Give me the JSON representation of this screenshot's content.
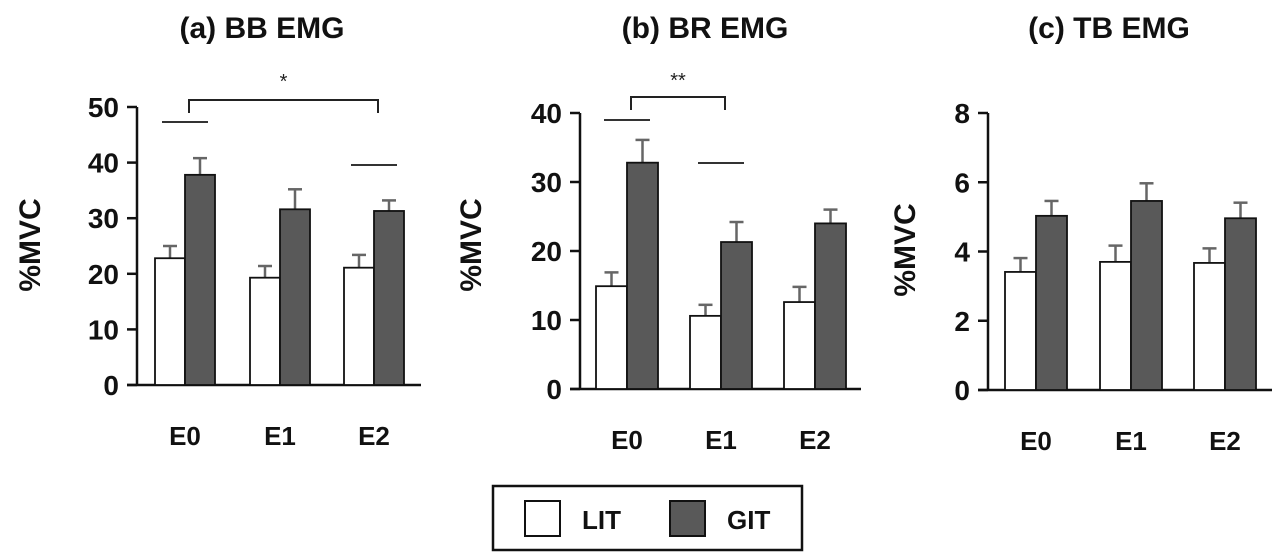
{
  "chart_data": [
    {
      "type": "bar",
      "title": "(a) BB EMG",
      "ylabel": "%MVC",
      "xlabel": "",
      "ylim": [
        0,
        50
      ],
      "yticks": [
        0,
        10,
        20,
        30,
        40,
        50
      ],
      "categories": [
        "E0",
        "E1",
        "E2"
      ],
      "series": [
        {
          "name": "LIT",
          "values": [
            22.8,
            19.3,
            21.1
          ],
          "error": [
            2.2,
            2.1,
            2.3
          ]
        },
        {
          "name": "GIT",
          "values": [
            37.8,
            31.6,
            31.3
          ],
          "error": [
            3.0,
            3.6,
            1.9
          ]
        }
      ],
      "annotations": [
        {
          "type": "bracket",
          "from": "E0",
          "to": "E2",
          "label": "*"
        },
        {
          "type": "line",
          "category": "E0"
        },
        {
          "type": "line",
          "category": "E2"
        }
      ],
      "grid": false
    },
    {
      "type": "bar",
      "title": "(b) BR EMG",
      "ylabel": "%MVC",
      "xlabel": "",
      "ylim": [
        0,
        40
      ],
      "yticks": [
        0,
        10,
        20,
        30,
        40
      ],
      "categories": [
        "E0",
        "E1",
        "E2"
      ],
      "series": [
        {
          "name": "LIT",
          "values": [
            14.9,
            10.6,
            12.6
          ],
          "error": [
            2.0,
            1.6,
            2.2
          ]
        },
        {
          "name": "GIT",
          "values": [
            32.8,
            21.3,
            24.0
          ],
          "error": [
            3.3,
            2.9,
            2.0
          ]
        }
      ],
      "annotations": [
        {
          "type": "bracket",
          "from": "E0",
          "to": "E1",
          "label": "**"
        },
        {
          "type": "line",
          "category": "E0"
        },
        {
          "type": "line",
          "category": "E1"
        }
      ],
      "grid": false
    },
    {
      "type": "bar",
      "title": "(c) TB EMG",
      "ylabel": "%MVC",
      "xlabel": "",
      "ylim": [
        0,
        8
      ],
      "yticks": [
        0,
        2,
        4,
        6,
        8
      ],
      "categories": [
        "E0",
        "E1",
        "E2"
      ],
      "series": [
        {
          "name": "LIT",
          "values": [
            3.41,
            3.7,
            3.67
          ],
          "error": [
            0.4,
            0.47,
            0.42
          ]
        },
        {
          "name": "GIT",
          "values": [
            5.03,
            5.46,
            4.96
          ],
          "error": [
            0.43,
            0.51,
            0.45
          ]
        }
      ],
      "annotations": [],
      "grid": false
    }
  ],
  "legend": {
    "position": "bottom-center",
    "items": [
      {
        "label": "LIT",
        "color": "#ffffff"
      },
      {
        "label": "GIT",
        "color": "#595959"
      }
    ]
  },
  "colors": {
    "LIT": "#ffffff",
    "GIT": "#595959",
    "axis": "#111111",
    "errorbar": "#666666"
  }
}
